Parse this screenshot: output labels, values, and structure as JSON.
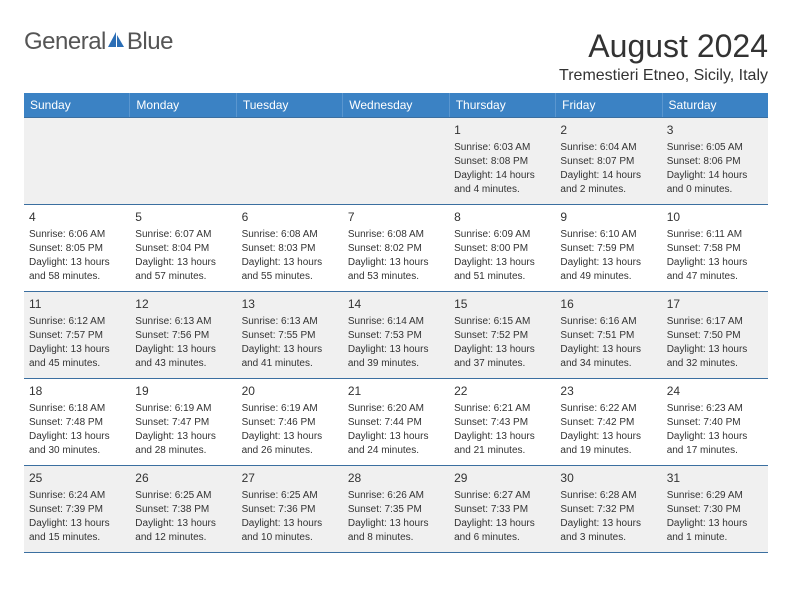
{
  "logo": {
    "text1": "General",
    "text2": "Blue"
  },
  "title": "August 2024",
  "location": "Tremestieri Etneo, Sicily, Italy",
  "colors": {
    "header_bg": "#3b82c4",
    "header_text": "#ffffff",
    "border": "#3b6fa0",
    "shaded_bg": "#f0f0f0",
    "text": "#333333",
    "logo_gray": "#555555",
    "logo_blue": "#2a6db5"
  },
  "day_headers": [
    "Sunday",
    "Monday",
    "Tuesday",
    "Wednesday",
    "Thursday",
    "Friday",
    "Saturday"
  ],
  "weeks": [
    [
      {
        "num": "",
        "sunrise": "",
        "sunset": "",
        "daylight": ""
      },
      {
        "num": "",
        "sunrise": "",
        "sunset": "",
        "daylight": ""
      },
      {
        "num": "",
        "sunrise": "",
        "sunset": "",
        "daylight": ""
      },
      {
        "num": "",
        "sunrise": "",
        "sunset": "",
        "daylight": ""
      },
      {
        "num": "1",
        "sunrise": "Sunrise: 6:03 AM",
        "sunset": "Sunset: 8:08 PM",
        "daylight": "Daylight: 14 hours and 4 minutes."
      },
      {
        "num": "2",
        "sunrise": "Sunrise: 6:04 AM",
        "sunset": "Sunset: 8:07 PM",
        "daylight": "Daylight: 14 hours and 2 minutes."
      },
      {
        "num": "3",
        "sunrise": "Sunrise: 6:05 AM",
        "sunset": "Sunset: 8:06 PM",
        "daylight": "Daylight: 14 hours and 0 minutes."
      }
    ],
    [
      {
        "num": "4",
        "sunrise": "Sunrise: 6:06 AM",
        "sunset": "Sunset: 8:05 PM",
        "daylight": "Daylight: 13 hours and 58 minutes."
      },
      {
        "num": "5",
        "sunrise": "Sunrise: 6:07 AM",
        "sunset": "Sunset: 8:04 PM",
        "daylight": "Daylight: 13 hours and 57 minutes."
      },
      {
        "num": "6",
        "sunrise": "Sunrise: 6:08 AM",
        "sunset": "Sunset: 8:03 PM",
        "daylight": "Daylight: 13 hours and 55 minutes."
      },
      {
        "num": "7",
        "sunrise": "Sunrise: 6:08 AM",
        "sunset": "Sunset: 8:02 PM",
        "daylight": "Daylight: 13 hours and 53 minutes."
      },
      {
        "num": "8",
        "sunrise": "Sunrise: 6:09 AM",
        "sunset": "Sunset: 8:00 PM",
        "daylight": "Daylight: 13 hours and 51 minutes."
      },
      {
        "num": "9",
        "sunrise": "Sunrise: 6:10 AM",
        "sunset": "Sunset: 7:59 PM",
        "daylight": "Daylight: 13 hours and 49 minutes."
      },
      {
        "num": "10",
        "sunrise": "Sunrise: 6:11 AM",
        "sunset": "Sunset: 7:58 PM",
        "daylight": "Daylight: 13 hours and 47 minutes."
      }
    ],
    [
      {
        "num": "11",
        "sunrise": "Sunrise: 6:12 AM",
        "sunset": "Sunset: 7:57 PM",
        "daylight": "Daylight: 13 hours and 45 minutes."
      },
      {
        "num": "12",
        "sunrise": "Sunrise: 6:13 AM",
        "sunset": "Sunset: 7:56 PM",
        "daylight": "Daylight: 13 hours and 43 minutes."
      },
      {
        "num": "13",
        "sunrise": "Sunrise: 6:13 AM",
        "sunset": "Sunset: 7:55 PM",
        "daylight": "Daylight: 13 hours and 41 minutes."
      },
      {
        "num": "14",
        "sunrise": "Sunrise: 6:14 AM",
        "sunset": "Sunset: 7:53 PM",
        "daylight": "Daylight: 13 hours and 39 minutes."
      },
      {
        "num": "15",
        "sunrise": "Sunrise: 6:15 AM",
        "sunset": "Sunset: 7:52 PM",
        "daylight": "Daylight: 13 hours and 37 minutes."
      },
      {
        "num": "16",
        "sunrise": "Sunrise: 6:16 AM",
        "sunset": "Sunset: 7:51 PM",
        "daylight": "Daylight: 13 hours and 34 minutes."
      },
      {
        "num": "17",
        "sunrise": "Sunrise: 6:17 AM",
        "sunset": "Sunset: 7:50 PM",
        "daylight": "Daylight: 13 hours and 32 minutes."
      }
    ],
    [
      {
        "num": "18",
        "sunrise": "Sunrise: 6:18 AM",
        "sunset": "Sunset: 7:48 PM",
        "daylight": "Daylight: 13 hours and 30 minutes."
      },
      {
        "num": "19",
        "sunrise": "Sunrise: 6:19 AM",
        "sunset": "Sunset: 7:47 PM",
        "daylight": "Daylight: 13 hours and 28 minutes."
      },
      {
        "num": "20",
        "sunrise": "Sunrise: 6:19 AM",
        "sunset": "Sunset: 7:46 PM",
        "daylight": "Daylight: 13 hours and 26 minutes."
      },
      {
        "num": "21",
        "sunrise": "Sunrise: 6:20 AM",
        "sunset": "Sunset: 7:44 PM",
        "daylight": "Daylight: 13 hours and 24 minutes."
      },
      {
        "num": "22",
        "sunrise": "Sunrise: 6:21 AM",
        "sunset": "Sunset: 7:43 PM",
        "daylight": "Daylight: 13 hours and 21 minutes."
      },
      {
        "num": "23",
        "sunrise": "Sunrise: 6:22 AM",
        "sunset": "Sunset: 7:42 PM",
        "daylight": "Daylight: 13 hours and 19 minutes."
      },
      {
        "num": "24",
        "sunrise": "Sunrise: 6:23 AM",
        "sunset": "Sunset: 7:40 PM",
        "daylight": "Daylight: 13 hours and 17 minutes."
      }
    ],
    [
      {
        "num": "25",
        "sunrise": "Sunrise: 6:24 AM",
        "sunset": "Sunset: 7:39 PM",
        "daylight": "Daylight: 13 hours and 15 minutes."
      },
      {
        "num": "26",
        "sunrise": "Sunrise: 6:25 AM",
        "sunset": "Sunset: 7:38 PM",
        "daylight": "Daylight: 13 hours and 12 minutes."
      },
      {
        "num": "27",
        "sunrise": "Sunrise: 6:25 AM",
        "sunset": "Sunset: 7:36 PM",
        "daylight": "Daylight: 13 hours and 10 minutes."
      },
      {
        "num": "28",
        "sunrise": "Sunrise: 6:26 AM",
        "sunset": "Sunset: 7:35 PM",
        "daylight": "Daylight: 13 hours and 8 minutes."
      },
      {
        "num": "29",
        "sunrise": "Sunrise: 6:27 AM",
        "sunset": "Sunset: 7:33 PM",
        "daylight": "Daylight: 13 hours and 6 minutes."
      },
      {
        "num": "30",
        "sunrise": "Sunrise: 6:28 AM",
        "sunset": "Sunset: 7:32 PM",
        "daylight": "Daylight: 13 hours and 3 minutes."
      },
      {
        "num": "31",
        "sunrise": "Sunrise: 6:29 AM",
        "sunset": "Sunset: 7:30 PM",
        "daylight": "Daylight: 13 hours and 1 minute."
      }
    ]
  ]
}
